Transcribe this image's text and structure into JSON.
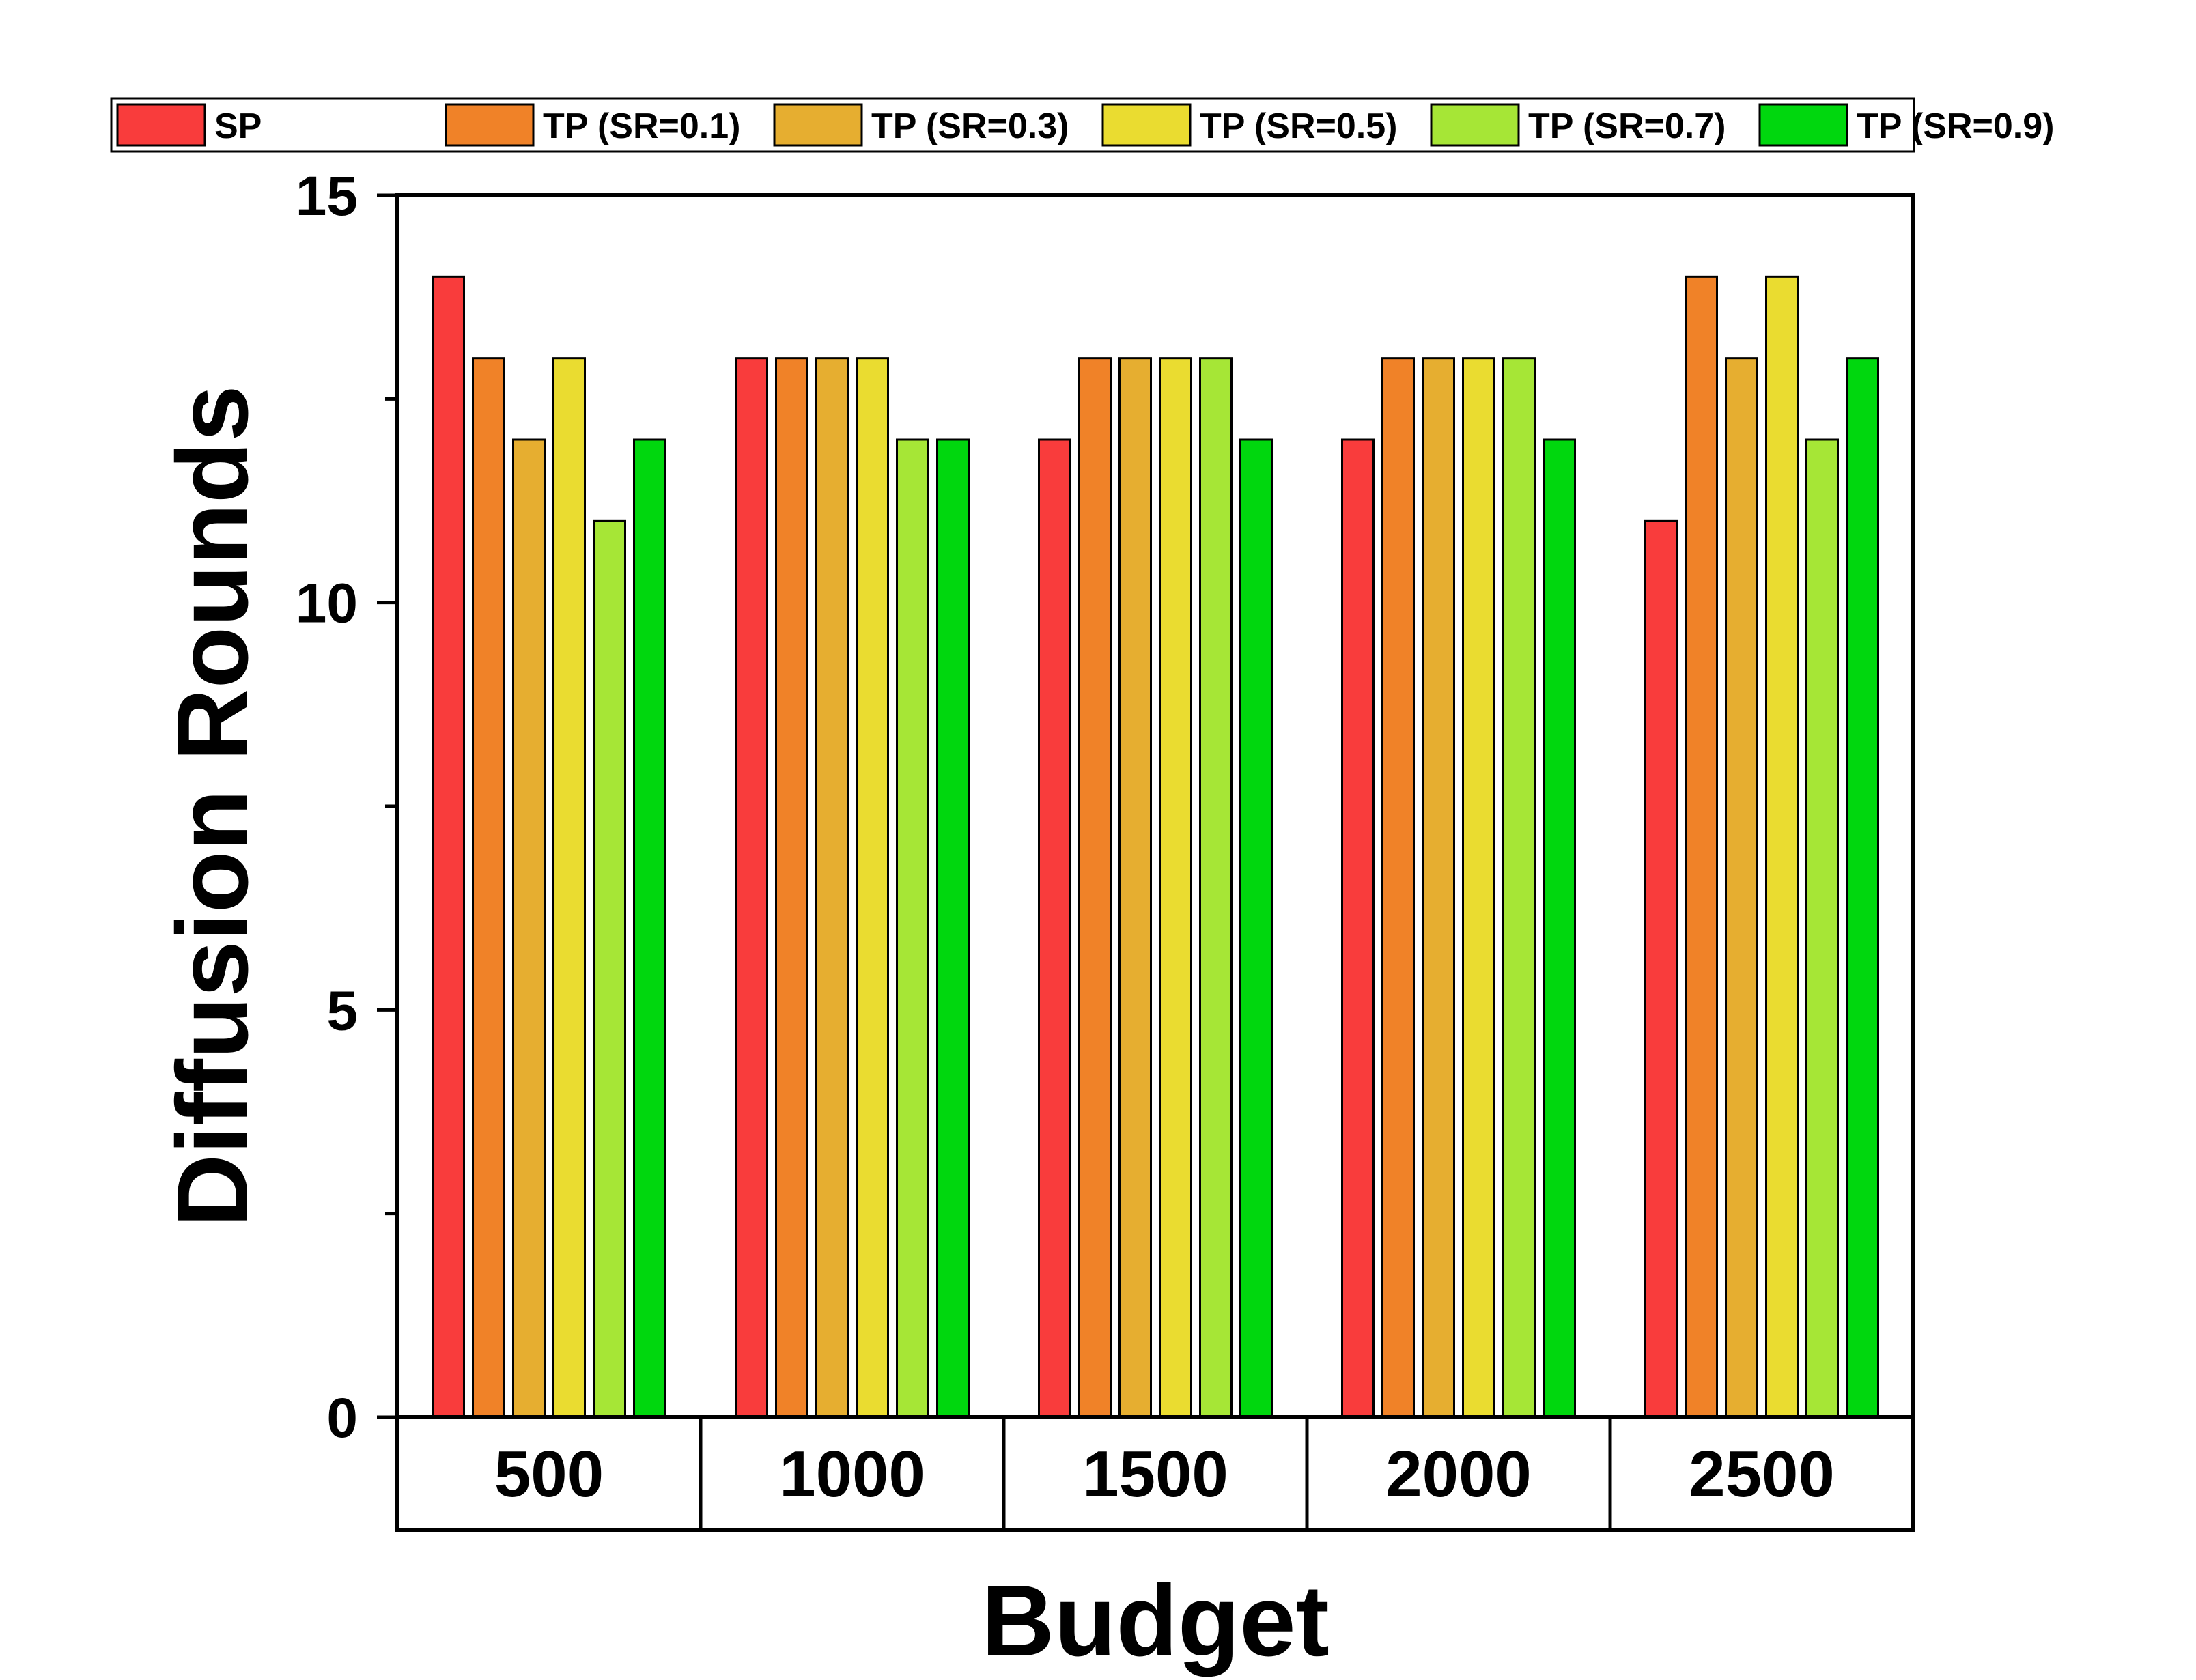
{
  "chart_data": {
    "type": "bar",
    "categories": [
      "500",
      "1000",
      "1500",
      "2000",
      "2500"
    ],
    "series": [
      {
        "name": "SP",
        "color": "#f93c3c",
        "values": [
          14,
          13,
          12,
          12,
          11
        ]
      },
      {
        "name": "TP (SR=0.1)",
        "color": "#f08228",
        "values": [
          13,
          13,
          13,
          13,
          14
        ]
      },
      {
        "name": "TP (SR=0.3)",
        "color": "#e6ae30",
        "values": [
          12,
          13,
          13,
          13,
          13
        ]
      },
      {
        "name": "TP (SR=0.5)",
        "color": "#eadc30",
        "values": [
          13,
          13,
          13,
          13,
          14
        ]
      },
      {
        "name": "TP (SR=0.7)",
        "color": "#a6e636",
        "values": [
          11,
          12,
          13,
          13,
          12
        ]
      },
      {
        "name": "TP (SR=0.9)",
        "color": "#00d70e",
        "values": [
          12,
          12,
          12,
          12,
          13
        ]
      }
    ],
    "xlabel": "Budget",
    "ylabel": "Diffusion Rounds",
    "ylim": [
      0,
      15
    ],
    "yticks": [
      0,
      5,
      10,
      15
    ],
    "legend_position": "top",
    "grid": false
  }
}
